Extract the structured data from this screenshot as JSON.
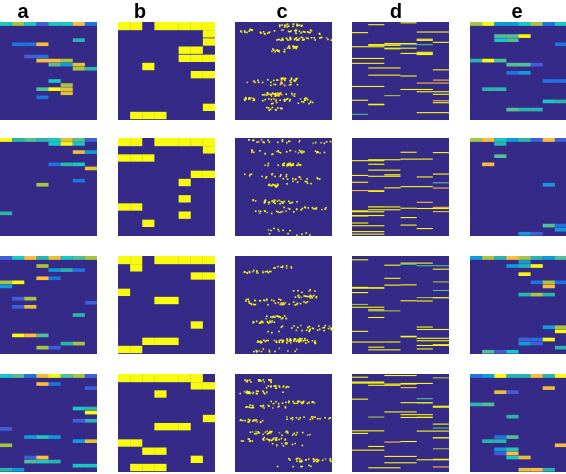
{
  "figure": {
    "columns": [
      {
        "key": "a",
        "label": "a",
        "style": "multicolor-blocks"
      },
      {
        "key": "b",
        "label": "b",
        "style": "binary-blocks"
      },
      {
        "key": "c",
        "label": "c",
        "style": "sparse-dots"
      },
      {
        "key": "d",
        "label": "d",
        "style": "thin-stripes"
      },
      {
        "key": "e",
        "label": "e",
        "style": "multicolor-blocks-soft"
      }
    ],
    "rows": 4,
    "colors": {
      "background": "#ffffff",
      "panel_bg": "#352a87",
      "yellow": "#f9fb0e",
      "palette": [
        "#f9fb0e",
        "#fdbc3d",
        "#e6c137",
        "#a7c540",
        "#52bf96",
        "#2bb4ad",
        "#1ac7c2",
        "#0f9bd9",
        "#1f72df",
        "#3f5fd9"
      ]
    }
  }
}
